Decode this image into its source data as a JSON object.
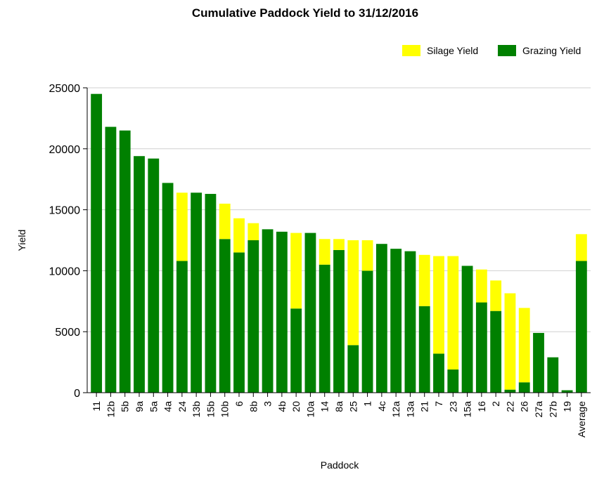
{
  "chart_data": {
    "type": "bar",
    "stacked": true,
    "title": "Cumulative Paddock Yield to 31/12/2016",
    "xlabel": "Paddock",
    "ylabel": "Yield",
    "ylim": [
      0,
      25000
    ],
    "yticks": [
      0,
      5000,
      10000,
      15000,
      20000,
      25000
    ],
    "grid": true,
    "legend_position": "top-right",
    "categories": [
      "11",
      "12b",
      "5b",
      "9a",
      "5a",
      "4a",
      "24",
      "13b",
      "15b",
      "10b",
      "6",
      "8b",
      "3",
      "4b",
      "20",
      "10a",
      "14",
      "8a",
      "25",
      "1",
      "4c",
      "12a",
      "13a",
      "21",
      "7",
      "23",
      "15a",
      "16",
      "2",
      "22",
      "26",
      "27a",
      "27b",
      "19",
      "Average"
    ],
    "series": [
      {
        "name": "Grazing Yield",
        "color": "#008000",
        "values": [
          24500,
          21800,
          21500,
          19400,
          19200,
          17200,
          10800,
          16400,
          16300,
          12600,
          11500,
          12500,
          13400,
          13200,
          6900,
          13100,
          10500,
          11700,
          3900,
          10000,
          12200,
          11800,
          11600,
          7100,
          3200,
          1900,
          10400,
          7400,
          6700,
          250,
          850,
          4900,
          2900,
          200,
          10800
        ]
      },
      {
        "name": "Silage Yield",
        "color": "#ffff00",
        "values": [
          0,
          0,
          0,
          0,
          0,
          0,
          5600,
          0,
          0,
          2900,
          2800,
          1400,
          0,
          0,
          6200,
          0,
          2100,
          900,
          8600,
          2500,
          0,
          0,
          0,
          4200,
          8000,
          9300,
          0,
          2700,
          2500,
          7900,
          6100,
          0,
          0,
          0,
          2200
        ]
      }
    ]
  }
}
